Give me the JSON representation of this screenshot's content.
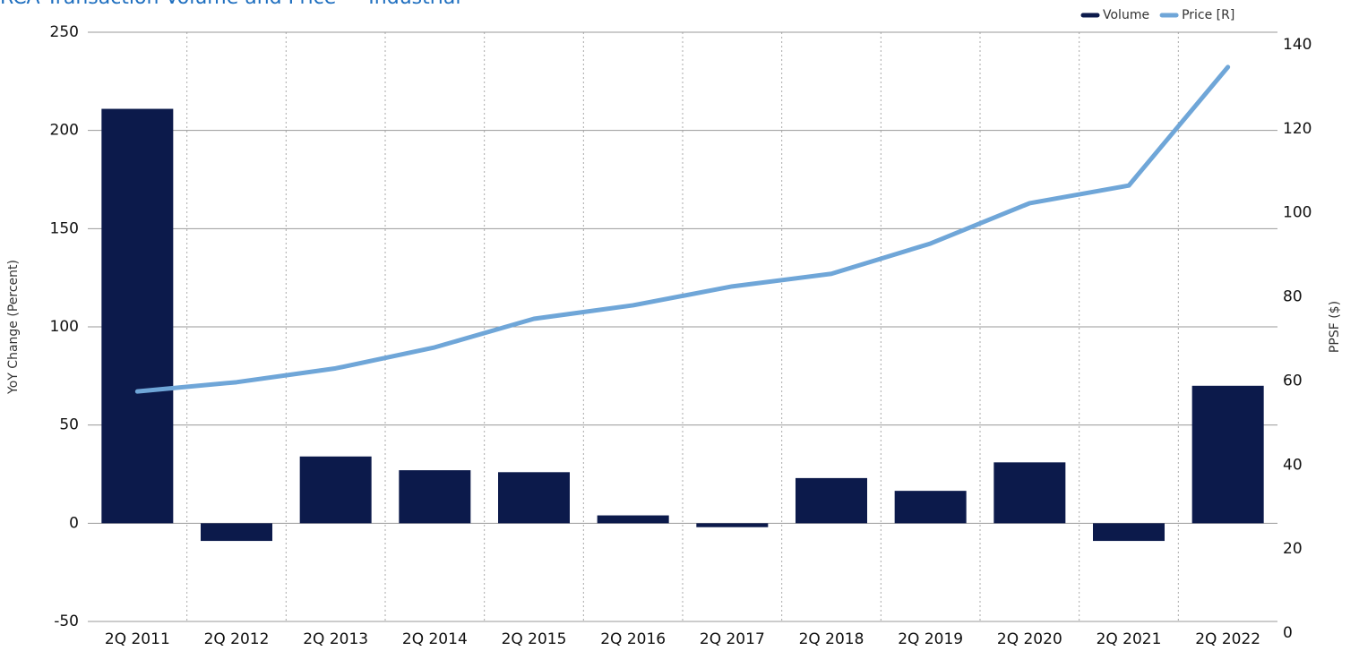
{
  "chart_data": {
    "type": "bar_line",
    "title": "RCA Transaction Volume and Price — Industrial",
    "categories": [
      "2Q 2011",
      "2Q 2012",
      "2Q 2013",
      "2Q 2014",
      "2Q 2015",
      "2Q 2016",
      "2Q 2017",
      "2Q 2018",
      "2Q 2019",
      "2Q 2020",
      "2Q 2021",
      "2Q 2022"
    ],
    "series": [
      {
        "name": "Volume",
        "color": "#0c1a4b",
        "type": "bar",
        "values": [
          211,
          -9,
          34,
          27,
          26,
          4,
          -2,
          23,
          16.5,
          31,
          -9,
          70
        ]
      },
      {
        "name": "Price [R]",
        "color": "#6fa6d8",
        "type": "line",
        "axis": "y2",
        "values": [
          57.5,
          59.7,
          63,
          68,
          74.8,
          78,
          82.5,
          85.5,
          92.7,
          102.3,
          106.5,
          134.7
        ]
      }
    ],
    "ylabel": "YoY Change (Percent)",
    "y2label": "PPSF ($)",
    "ylim": [
      -50,
      250
    ],
    "yticks": [
      -50,
      0,
      50,
      100,
      150,
      200,
      250
    ],
    "y2lim": [
      0,
      140
    ],
    "y2ticks": [
      0,
      20,
      40,
      60,
      80,
      100,
      120,
      140
    ],
    "grid": true,
    "legend": "top-right"
  }
}
